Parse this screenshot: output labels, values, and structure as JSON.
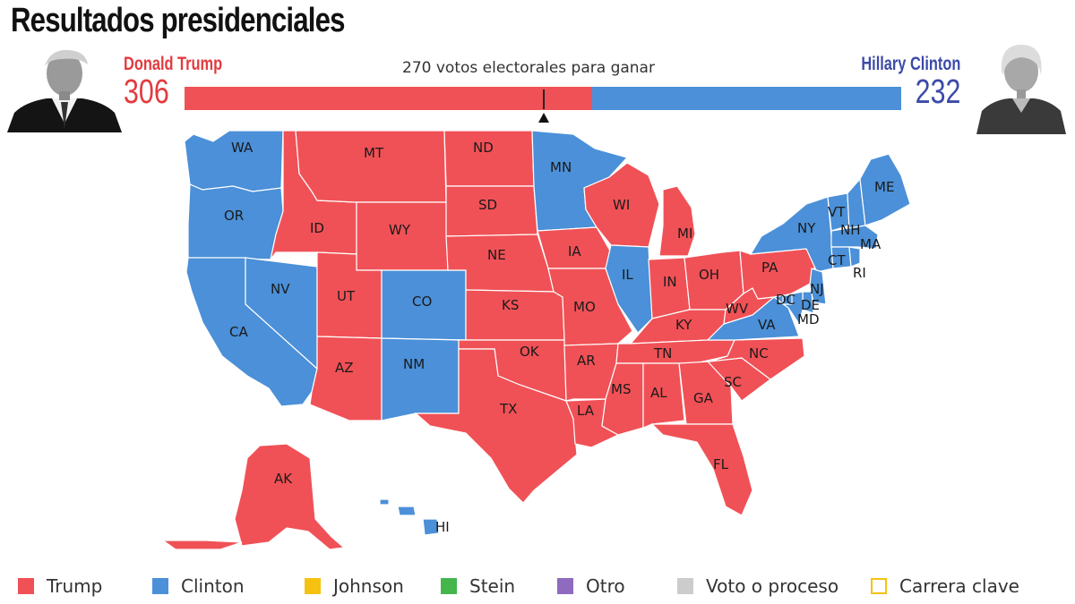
{
  "title": "Resultados presidenciales",
  "threshold_label": "270 votos electorales para ganar",
  "candidates": {
    "trump": {
      "name": "Donald Trump",
      "votes": "306",
      "color": "#f05156"
    },
    "clinton": {
      "name": "Hillary Clinton",
      "votes": "232",
      "color": "#4b90d8"
    }
  },
  "electoral": {
    "total": 538,
    "threshold": 270,
    "trump": 306,
    "clinton": 232
  },
  "icons": {
    "trump_portrait": "person-portrait-icon",
    "clinton_portrait": "person-portrait-icon"
  },
  "colors": {
    "trump": "#f05156",
    "clinton": "#4b90d8",
    "johnson": "#f5c211",
    "stein": "#44b64c",
    "otro": "#8f6bbf",
    "pending": "#cccccc",
    "key_race": "#f5c211"
  },
  "legend": [
    {
      "label": "Trump",
      "color": "#f05156",
      "style": "fill"
    },
    {
      "label": "Clinton",
      "color": "#4b90d8",
      "style": "fill"
    },
    {
      "label": "Johnson",
      "color": "#f5c211",
      "style": "fill"
    },
    {
      "label": "Stein",
      "color": "#44b64c",
      "style": "fill"
    },
    {
      "label": "Otro",
      "color": "#8f6bbf",
      "style": "fill"
    },
    {
      "label": "Voto o proceso",
      "color": "#cccccc",
      "style": "fill"
    },
    {
      "label": "Carrera clave",
      "color": "#f5c211",
      "style": "outline"
    }
  ],
  "states": {
    "WA": "clinton",
    "OR": "clinton",
    "CA": "clinton",
    "NV": "clinton",
    "ID": "trump",
    "MT": "trump",
    "WY": "trump",
    "UT": "trump",
    "AZ": "trump",
    "CO": "clinton",
    "NM": "clinton",
    "ND": "trump",
    "SD": "trump",
    "NE": "trump",
    "KS": "trump",
    "OK": "trump",
    "TX": "trump",
    "MN": "clinton",
    "IA": "trump",
    "MO": "trump",
    "AR": "trump",
    "LA": "trump",
    "WI": "trump",
    "IL": "clinton",
    "MI": "trump",
    "IN": "trump",
    "OH": "trump",
    "KY": "trump",
    "TN": "trump",
    "MS": "trump",
    "AL": "trump",
    "GA": "trump",
    "FL": "trump",
    "SC": "trump",
    "NC": "trump",
    "VA": "clinton",
    "WV": "trump",
    "PA": "trump",
    "NY": "clinton",
    "VT": "clinton",
    "NH": "clinton",
    "ME": "clinton",
    "MA": "clinton",
    "CT": "clinton",
    "RI": "clinton",
    "NJ": "clinton",
    "DE": "clinton",
    "MD": "clinton",
    "DC": "clinton",
    "AK": "trump",
    "HI": "clinton"
  }
}
